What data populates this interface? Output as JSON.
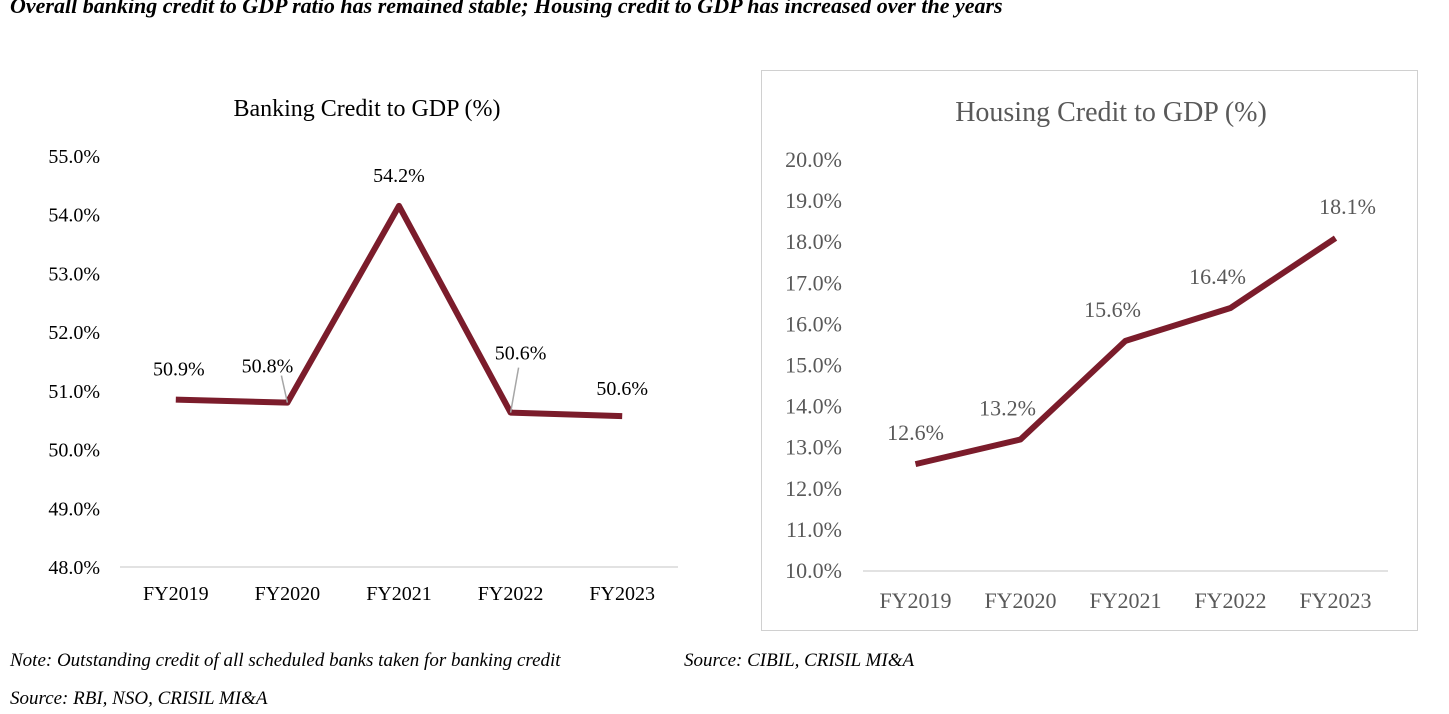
{
  "heading": "Overall banking credit to GDP ratio has remained stable; Housing credit to GDP has increased over the years",
  "footnotes": {
    "left_note": "Note: Outstanding credit of all scheduled banks taken for banking credit",
    "left_source": "Source: RBI, NSO, CRISIL MI&A",
    "right_source": "Source: CIBIL, CRISIL MI&A"
  },
  "chart_data": [
    {
      "type": "line",
      "title": "Banking Credit to GDP (%)",
      "categories": [
        "FY2019",
        "FY2020",
        "FY2021",
        "FY2022",
        "FY2023"
      ],
      "values": [
        50.85,
        50.8,
        54.15,
        50.63,
        50.57
      ],
      "data_labels": [
        "50.9%",
        "50.8%",
        "54.2%",
        "50.6%",
        "50.6%"
      ],
      "ylim": [
        48.0,
        55.0
      ],
      "yticks": [
        "48.0%",
        "49.0%",
        "50.0%",
        "51.0%",
        "52.0%",
        "53.0%",
        "54.0%",
        "55.0%"
      ],
      "xlabel": "",
      "ylabel": "",
      "grid": false,
      "line_color": "#7b1c2b",
      "text_color": "#000000"
    },
    {
      "type": "line",
      "title": "Housing Credit to GDP (%)",
      "categories": [
        "FY2019",
        "FY2020",
        "FY2021",
        "FY2022",
        "FY2023"
      ],
      "values": [
        12.6,
        13.2,
        15.6,
        16.4,
        18.1
      ],
      "data_labels": [
        "12.6%",
        "13.2%",
        "15.6%",
        "16.4%",
        "18.1%"
      ],
      "ylim": [
        10.0,
        20.0
      ],
      "yticks": [
        "10.0%",
        "11.0%",
        "12.0%",
        "13.0%",
        "14.0%",
        "15.0%",
        "16.0%",
        "17.0%",
        "18.0%",
        "19.0%",
        "20.0%"
      ],
      "xlabel": "",
      "ylabel": "",
      "grid": false,
      "line_color": "#7b1c2b",
      "text_color": "#595959"
    }
  ]
}
